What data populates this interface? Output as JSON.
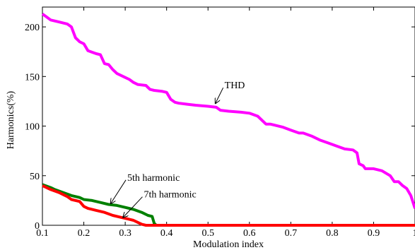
{
  "chart_data": {
    "type": "line",
    "xlabel": "Modulation index",
    "ylabel": "Harmonics(%)",
    "xlim": [
      0.1,
      1.0
    ],
    "ylim": [
      0,
      220
    ],
    "x_ticks": [
      "0.1",
      "0.2",
      "0.3",
      "0.4",
      "0.5",
      "0.6",
      "0.7",
      "0.8",
      "0.9",
      "1"
    ],
    "y_ticks": [
      "0",
      "50",
      "100",
      "150",
      "200"
    ],
    "grid": false,
    "series": [
      {
        "key": "thd",
        "color": "#ff00ff",
        "points": [
          [
            0.1,
            213
          ],
          [
            0.11,
            210
          ],
          [
            0.12,
            207
          ],
          [
            0.14,
            205
          ],
          [
            0.16,
            203
          ],
          [
            0.17,
            200
          ],
          [
            0.18,
            189
          ],
          [
            0.19,
            185
          ],
          [
            0.2,
            183
          ],
          [
            0.21,
            176
          ],
          [
            0.23,
            173
          ],
          [
            0.24,
            172
          ],
          [
            0.25,
            163
          ],
          [
            0.26,
            162
          ],
          [
            0.27,
            157
          ],
          [
            0.28,
            153
          ],
          [
            0.3,
            149
          ],
          [
            0.31,
            147
          ],
          [
            0.32,
            144
          ],
          [
            0.33,
            142
          ],
          [
            0.35,
            141
          ],
          [
            0.36,
            137
          ],
          [
            0.37,
            136
          ],
          [
            0.39,
            135
          ],
          [
            0.4,
            134
          ],
          [
            0.41,
            127
          ],
          [
            0.42,
            124
          ],
          [
            0.43,
            123
          ],
          [
            0.45,
            122
          ],
          [
            0.47,
            121
          ],
          [
            0.5,
            120
          ],
          [
            0.52,
            119
          ],
          [
            0.53,
            116
          ],
          [
            0.55,
            115
          ],
          [
            0.58,
            114
          ],
          [
            0.6,
            113
          ],
          [
            0.62,
            110
          ],
          [
            0.63,
            106
          ],
          [
            0.64,
            102
          ],
          [
            0.65,
            102
          ],
          [
            0.66,
            101
          ],
          [
            0.68,
            99
          ],
          [
            0.7,
            96
          ],
          [
            0.72,
            93
          ],
          [
            0.73,
            93
          ],
          [
            0.75,
            90
          ],
          [
            0.77,
            86
          ],
          [
            0.79,
            83
          ],
          [
            0.81,
            80
          ],
          [
            0.83,
            77
          ],
          [
            0.85,
            76
          ],
          [
            0.86,
            73
          ],
          [
            0.865,
            62
          ],
          [
            0.875,
            60
          ],
          [
            0.88,
            57
          ],
          [
            0.9,
            57
          ],
          [
            0.92,
            55
          ],
          [
            0.94,
            50
          ],
          [
            0.95,
            44
          ],
          [
            0.96,
            44
          ],
          [
            0.97,
            40
          ],
          [
            0.98,
            37
          ],
          [
            0.99,
            30
          ],
          [
            1.0,
            17
          ]
        ]
      },
      {
        "key": "h5",
        "color": "#008000",
        "points": [
          [
            0.1,
            41
          ],
          [
            0.12,
            38
          ],
          [
            0.13,
            36
          ],
          [
            0.15,
            33
          ],
          [
            0.17,
            30
          ],
          [
            0.19,
            28
          ],
          [
            0.2,
            26
          ],
          [
            0.22,
            25
          ],
          [
            0.24,
            23
          ],
          [
            0.26,
            21
          ],
          [
            0.28,
            20
          ],
          [
            0.3,
            18
          ],
          [
            0.32,
            16
          ],
          [
            0.34,
            13
          ],
          [
            0.355,
            10
          ],
          [
            0.365,
            9
          ],
          [
            0.37,
            2
          ],
          [
            0.375,
            0
          ],
          [
            1.0,
            0
          ]
        ]
      },
      {
        "key": "h7",
        "color": "#ff0000",
        "points": [
          [
            0.1,
            40
          ],
          [
            0.12,
            36
          ],
          [
            0.14,
            33
          ],
          [
            0.16,
            29
          ],
          [
            0.17,
            26
          ],
          [
            0.19,
            24
          ],
          [
            0.2,
            19
          ],
          [
            0.21,
            17
          ],
          [
            0.23,
            15
          ],
          [
            0.25,
            13
          ],
          [
            0.27,
            10
          ],
          [
            0.29,
            8
          ],
          [
            0.31,
            6
          ],
          [
            0.32,
            5
          ],
          [
            0.33,
            3
          ],
          [
            0.34,
            1
          ],
          [
            0.35,
            0
          ],
          [
            1.0,
            0
          ]
        ]
      }
    ],
    "annotations": [
      {
        "key": "thd",
        "text": "THD",
        "text_at": [
          0.54,
          138
        ],
        "arrow_to": [
          0.518,
          123
        ]
      },
      {
        "key": "h5",
        "text": "5th harmonic",
        "text_at": [
          0.305,
          45
        ],
        "arrow_to": [
          0.265,
          22
        ]
      },
      {
        "key": "h7",
        "text": "7th harmonic",
        "text_at": [
          0.345,
          28
        ],
        "arrow_to": [
          0.295,
          8
        ]
      }
    ]
  }
}
